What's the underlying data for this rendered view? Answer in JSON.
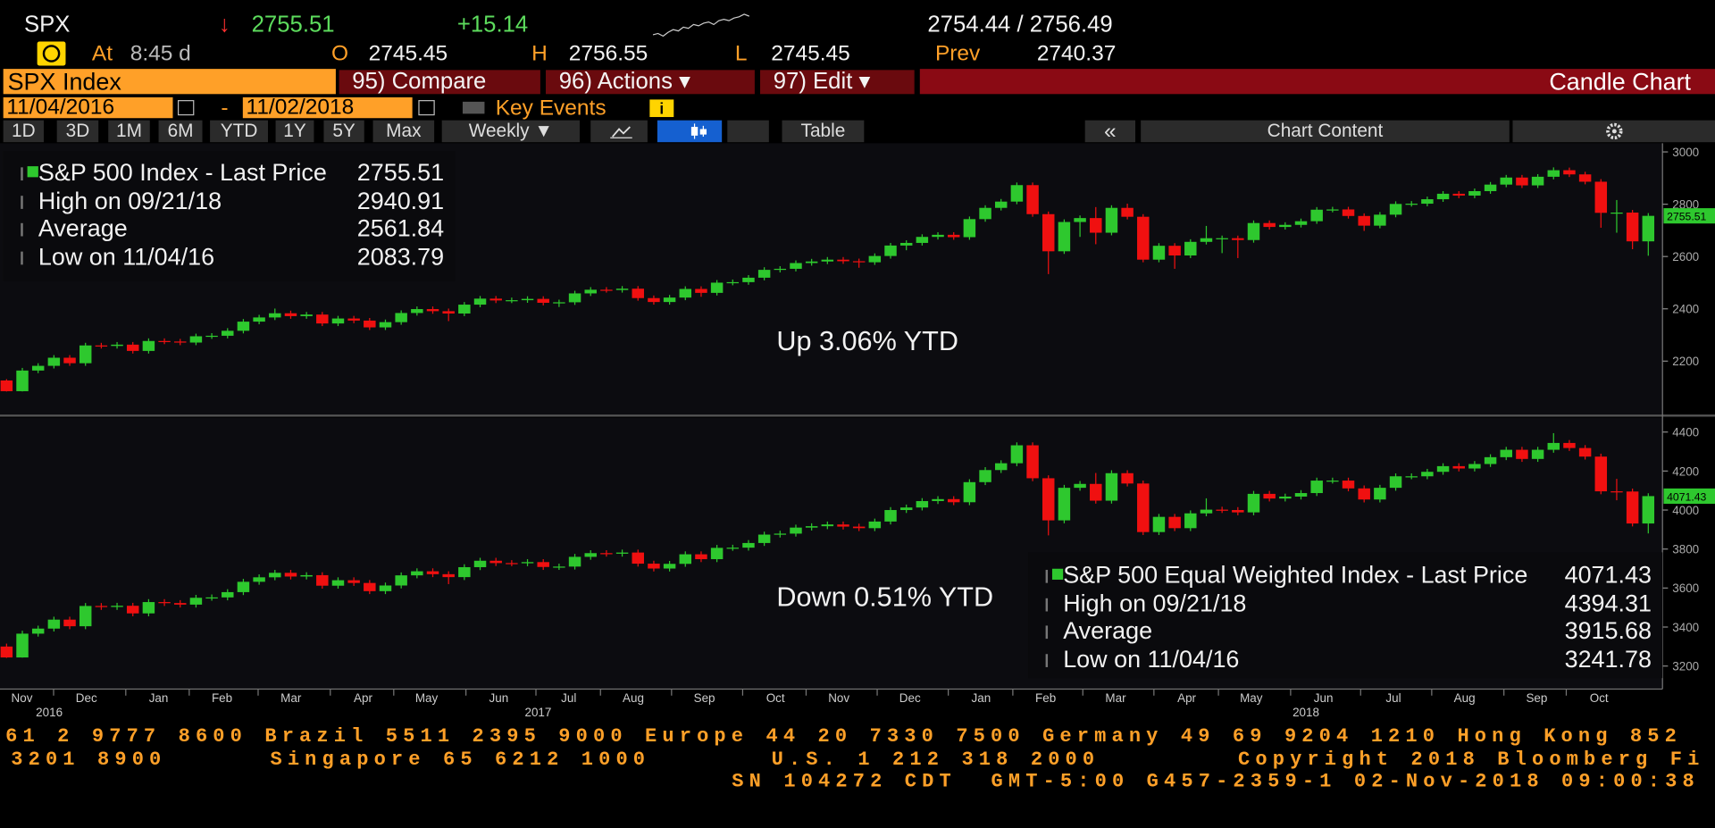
{
  "header": {
    "symbol": "SPX",
    "arrow": "↓",
    "last": "2755.51",
    "change": "+15.14",
    "bid_ask": "2754.44 / 2756.49",
    "at_label": "At",
    "time": "8:45 d",
    "open_label": "O",
    "open": "2745.45",
    "high_label": "H",
    "high": "2756.55",
    "low_label": "L",
    "low": "2745.45",
    "prev_label": "Prev",
    "prev": "2740.37",
    "sparkline": [
      2741,
      2742,
      2740,
      2743,
      2745,
      2744,
      2747,
      2746,
      2749,
      2748,
      2750,
      2751,
      2749,
      2752,
      2753,
      2752,
      2754,
      2755,
      2757,
      2755.5
    ]
  },
  "toolbar": {
    "security": "SPX Index",
    "buttons": [
      "95) Compare",
      "96) Actions ▾",
      "97) Edit ▾"
    ],
    "view": "Candle Chart",
    "start_date": "11/04/2016",
    "dash": "-",
    "end_date": "11/02/2018",
    "key_events": "Key Events",
    "info": "i",
    "periods": [
      "1D",
      "3D",
      "1M",
      "6M",
      "YTD",
      "1Y",
      "5Y",
      "Max"
    ],
    "frequency": "Weekly ▼",
    "table": "Table",
    "collapse": "«",
    "chart_content": "Chart Content"
  },
  "chart_data": [
    {
      "type": "candlestick",
      "color_up": "#2ec82e",
      "color_down": "#f01010",
      "ylim": [
        2000,
        3033
      ],
      "yticks": [
        2200,
        2400,
        2600,
        2800,
        3000
      ],
      "annotation": "Up 3.06% YTD",
      "legend": [
        {
          "label": "S&P 500 Index - Last Price",
          "value": 2755.51
        },
        {
          "label": "High on 09/21/18",
          "value": 2940.91
        },
        {
          "label": "Average",
          "value": 2561.84
        },
        {
          "label": "Low on 11/04/16",
          "value": 2083.79
        }
      ],
      "open": [
        2126,
        2085,
        2164,
        2182,
        2213,
        2192,
        2260,
        2258,
        2263,
        2239,
        2277,
        2275,
        2271,
        2295,
        2297,
        2316,
        2351,
        2367,
        2383,
        2372,
        2378,
        2344,
        2363,
        2355,
        2329,
        2349,
        2384,
        2399,
        2391,
        2382,
        2416,
        2439,
        2432,
        2433,
        2438,
        2423,
        2425,
        2459,
        2473,
        2472,
        2477,
        2441,
        2426,
        2443,
        2476,
        2461,
        2500,
        2502,
        2519,
        2549,
        2553,
        2575,
        2581,
        2588,
        2582,
        2578,
        2602,
        2642,
        2652,
        2675,
        2683,
        2674,
        2743,
        2786,
        2810,
        2873,
        2762,
        2620,
        2732,
        2747,
        2691,
        2786,
        2752,
        2588,
        2641,
        2604,
        2656,
        2670,
        2670,
        2663,
        2728,
        2713,
        2721,
        2735,
        2779,
        2780,
        2755,
        2718,
        2760,
        2801,
        2802,
        2819,
        2840,
        2833,
        2850,
        2875,
        2902,
        2872,
        2905,
        2930,
        2914,
        2886,
        2767,
        2768,
        2658
      ],
      "high": [
        2131,
        2174,
        2192,
        2223,
        2223,
        2270,
        2270,
        2273,
        2273,
        2287,
        2287,
        2285,
        2305,
        2307,
        2326,
        2361,
        2377,
        2401,
        2393,
        2388,
        2388,
        2373,
        2373,
        2365,
        2359,
        2394,
        2409,
        2409,
        2401,
        2426,
        2449,
        2449,
        2443,
        2448,
        2448,
        2435,
        2469,
        2483,
        2483,
        2487,
        2487,
        2451,
        2453,
        2486,
        2486,
        2510,
        2512,
        2529,
        2559,
        2563,
        2585,
        2591,
        2598,
        2598,
        2592,
        2612,
        2652,
        2662,
        2685,
        2693,
        2693,
        2753,
        2796,
        2820,
        2883,
        2883,
        2772,
        2742,
        2757,
        2789,
        2796,
        2802,
        2762,
        2651,
        2651,
        2666,
        2717,
        2680,
        2680,
        2738,
        2738,
        2731,
        2745,
        2789,
        2790,
        2790,
        2765,
        2770,
        2811,
        2812,
        2829,
        2850,
        2850,
        2860,
        2885,
        2912,
        2912,
        2915,
        2940.91,
        2940,
        2924,
        2896,
        2816,
        2778,
        2766
      ],
      "low": [
        2083.79,
        2084,
        2154,
        2172,
        2182,
        2182,
        2248,
        2248,
        2229,
        2229,
        2265,
        2261,
        2261,
        2285,
        2287,
        2306,
        2341,
        2357,
        2362,
        2362,
        2334,
        2334,
        2345,
        2319,
        2319,
        2339,
        2374,
        2381,
        2353,
        2372,
        2406,
        2422,
        2422,
        2423,
        2413,
        2407,
        2415,
        2449,
        2462,
        2462,
        2431,
        2416,
        2416,
        2433,
        2446,
        2451,
        2490,
        2492,
        2509,
        2539,
        2543,
        2565,
        2571,
        2572,
        2557,
        2568,
        2592,
        2624,
        2642,
        2665,
        2664,
        2664,
        2733,
        2776,
        2800,
        2752,
        2532.69,
        2610,
        2675,
        2647,
        2681,
        2742,
        2578,
        2578,
        2553,
        2594,
        2646,
        2613,
        2594,
        2653,
        2703,
        2703,
        2711,
        2725,
        2769,
        2745,
        2698,
        2708,
        2750,
        2791,
        2792,
        2809,
        2823,
        2823,
        2840,
        2865,
        2862,
        2862,
        2895,
        2904,
        2876,
        2710,
        2691,
        2628,
        2603
      ],
      "close": [
        2085,
        2164,
        2182,
        2213,
        2192,
        2260,
        2258,
        2263,
        2239,
        2277,
        2275,
        2271,
        2295,
        2297,
        2316,
        2351,
        2367,
        2383,
        2372,
        2378,
        2344,
        2363,
        2355,
        2329,
        2349,
        2384,
        2399,
        2391,
        2382,
        2416,
        2439,
        2432,
        2433,
        2438,
        2423,
        2425,
        2459,
        2473,
        2472,
        2477,
        2441,
        2426,
        2443,
        2476,
        2461,
        2500,
        2502,
        2519,
        2549,
        2553,
        2575,
        2581,
        2588,
        2582,
        2578,
        2602,
        2642,
        2652,
        2675,
        2683,
        2674,
        2743,
        2786,
        2810,
        2873,
        2762,
        2620,
        2732,
        2747,
        2691,
        2786,
        2752,
        2588,
        2641,
        2604,
        2656,
        2670,
        2670,
        2663,
        2728,
        2713,
        2721,
        2735,
        2779,
        2780,
        2755,
        2718,
        2760,
        2801,
        2802,
        2819,
        2840,
        2833,
        2850,
        2875,
        2902,
        2872,
        2905,
        2930,
        2914,
        2886,
        2767,
        2768,
        2658,
        2755.51
      ]
    },
    {
      "type": "candlestick",
      "color_up": "#2ec82e",
      "color_down": "#f01010",
      "ylim": [
        3082,
        4473
      ],
      "yticks": [
        3200,
        3400,
        3600,
        3800,
        4000,
        4200,
        4400
      ],
      "annotation": "Down 0.51% YTD",
      "legend": [
        {
          "label": "S&P 500 Equal Weighted Index - Last Price",
          "value": 4071.43
        },
        {
          "label": "High on 09/21/18",
          "value": 4394.31
        },
        {
          "label": "Average",
          "value": 3915.68
        },
        {
          "label": "Low on 11/04/16",
          "value": 3241.78
        }
      ],
      "open": [
        3300,
        3244,
        3366,
        3392,
        3438,
        3404,
        3508,
        3503,
        3509,
        3470,
        3528,
        3523,
        3515,
        3550,
        3552,
        3579,
        3632,
        3655,
        3678,
        3659,
        3666,
        3612,
        3640,
        3626,
        3584,
        3613,
        3665,
        3686,
        3671,
        3656,
        3707,
        3740,
        3728,
        3727,
        3733,
        3708,
        3710,
        3760,
        3779,
        3776,
        3782,
        3725,
        3700,
        3724,
        3773,
        3748,
        3806,
        3807,
        3831,
        3874,
        3879,
        3910,
        3917,
        3926,
        3915,
        3907,
        3941,
        4000,
        4013,
        4046,
        4056,
        4040,
        4143,
        4205,
        4240,
        4332,
        4163,
        3947,
        4114,
        4134,
        4048,
        4189,
        4136,
        3887,
        3965,
        3907,
        3983,
        4002,
        4000,
        3988,
        4083,
        4059,
        4069,
        4087,
        4151,
        4151,
        4111,
        4054,
        4114,
        4173,
        4173,
        4196,
        4225,
        4213,
        4236,
        4271,
        4309,
        4262,
        4309,
        4344,
        4318,
        4274,
        4096,
        4095,
        3931
      ],
      "high": [
        3315,
        3381,
        3407,
        3453,
        3453,
        3523,
        3523,
        3524,
        3524,
        3543,
        3543,
        3538,
        3565,
        3567,
        3594,
        3647,
        3670,
        3693,
        3693,
        3681,
        3681,
        3655,
        3655,
        3641,
        3628,
        3680,
        3701,
        3701,
        3686,
        3722,
        3755,
        3755,
        3743,
        3748,
        3748,
        3725,
        3775,
        3794,
        3794,
        3797,
        3797,
        3740,
        3739,
        3788,
        3788,
        3821,
        3822,
        3846,
        3889,
        3894,
        3925,
        3932,
        3941,
        3941,
        3930,
        3956,
        4015,
        4028,
        4061,
        4071,
        4071,
        4158,
        4220,
        4255,
        4347,
        4347,
        4178,
        4129,
        4149,
        4190,
        4204,
        4204,
        4151,
        3980,
        3980,
        3998,
        4060,
        4017,
        4015,
        4098,
        4098,
        4084,
        4102,
        4166,
        4166,
        4166,
        4126,
        4129,
        4188,
        4188,
        4211,
        4240,
        4240,
        4251,
        4286,
        4324,
        4324,
        4324,
        4394.31,
        4359,
        4333,
        4289,
        4160,
        4110,
        4086
      ],
      "low": [
        3241.78,
        3243,
        3351,
        3377,
        3389,
        3389,
        3488,
        3488,
        3455,
        3455,
        3508,
        3500,
        3500,
        3535,
        3537,
        3564,
        3617,
        3640,
        3644,
        3644,
        3597,
        3597,
        3611,
        3569,
        3569,
        3598,
        3650,
        3656,
        3620,
        3641,
        3692,
        3713,
        3712,
        3712,
        3693,
        3693,
        3695,
        3745,
        3761,
        3761,
        3710,
        3685,
        3685,
        3709,
        3733,
        3733,
        3791,
        3792,
        3816,
        3859,
        3864,
        3895,
        3902,
        3900,
        3892,
        3892,
        3926,
        3985,
        3998,
        4031,
        4025,
        4025,
        4128,
        4190,
        4225,
        4148,
        3870,
        3932,
        4099,
        4033,
        4033,
        4121,
        3872,
        3872,
        3892,
        3892,
        3968,
        3985,
        3973,
        3973,
        4044,
        4044,
        4054,
        4072,
        4136,
        4096,
        4039,
        4039,
        4099,
        4158,
        4158,
        4181,
        4198,
        4198,
        4221,
        4256,
        4247,
        4247,
        4294,
        4303,
        4259,
        4081,
        4050,
        3916,
        3880
      ],
      "close": [
        3244,
        3366,
        3392,
        3438,
        3404,
        3508,
        3503,
        3509,
        3470,
        3528,
        3523,
        3515,
        3550,
        3552,
        3579,
        3632,
        3655,
        3678,
        3659,
        3666,
        3612,
        3640,
        3626,
        3584,
        3613,
        3665,
        3686,
        3671,
        3656,
        3707,
        3740,
        3728,
        3727,
        3733,
        3708,
        3710,
        3760,
        3779,
        3776,
        3782,
        3725,
        3700,
        3724,
        3773,
        3748,
        3806,
        3807,
        3831,
        3874,
        3879,
        3910,
        3917,
        3926,
        3915,
        3907,
        3941,
        4000,
        4013,
        4046,
        4056,
        4040,
        4143,
        4205,
        4240,
        4332,
        4163,
        3947,
        4114,
        4134,
        4048,
        4189,
        4136,
        3887,
        3965,
        3907,
        3983,
        4002,
        4000,
        3988,
        4083,
        4059,
        4069,
        4087,
        4151,
        4151,
        4111,
        4054,
        4114,
        4173,
        4173,
        4196,
        4225,
        4213,
        4236,
        4271,
        4309,
        4262,
        4309,
        4344,
        4318,
        4274,
        4096,
        4095,
        3931,
        4071.43
      ]
    }
  ],
  "x_axis": {
    "months": [
      "Nov",
      "Dec",
      "Jan",
      "Feb",
      "Mar",
      "Apr",
      "May",
      "Jun",
      "Jul",
      "Aug",
      "Sep",
      "Oct",
      "Nov",
      "Dec",
      "Jan",
      "Feb",
      "Mar",
      "Apr",
      "May",
      "Jun",
      "Jul",
      "Aug",
      "Sep",
      "Oct"
    ],
    "years": [
      "2016",
      "2017",
      "2018"
    ]
  },
  "footer": {
    "lines": [
      "61 2 9777 8600 Brazil 5511 2395 9000 Europe 44 20 7330 7500 Germany 49 69 9204 1210 Hong Kong 852",
      "3201 8900      Singapore 65 6212 1000       U.S. 1 212 318 2000        Copyright 2018 Bloomberg Fi",
      "SN 104272 CDT  GMT-5:00 G457-2359-1 02-Nov-2018 09:00:38"
    ]
  }
}
